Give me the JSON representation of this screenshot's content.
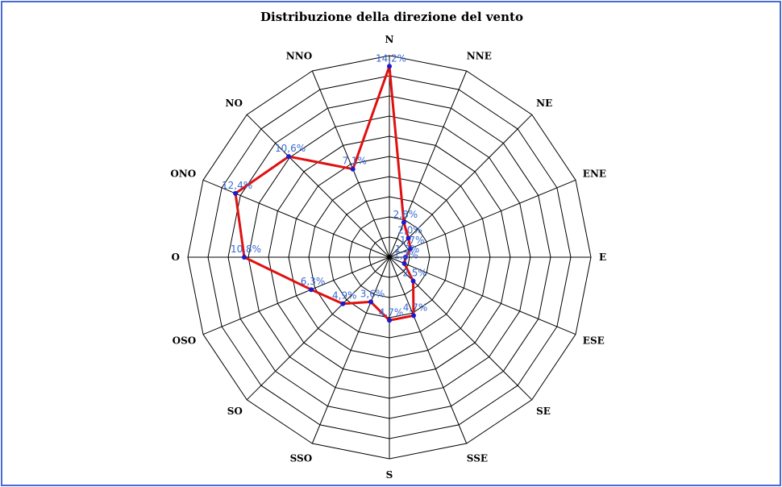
{
  "chart_data": {
    "type": "radar",
    "title": "Distribuzione della direzione del vento",
    "categories": [
      "N",
      "NNE",
      "NE",
      "ENE",
      "E",
      "ESE",
      "SE",
      "SSE",
      "S",
      "SSO",
      "SO",
      "OSO",
      "O",
      "ONO",
      "NO",
      "NNO"
    ],
    "series": [
      {
        "values": [
          14.2,
          2.8,
          2.0,
          1.7,
          1.2,
          1.2,
          2.5,
          4.7,
          4.7,
          3.6,
          4.9,
          6.3,
          10.8,
          12.4,
          10.6,
          7.1
        ],
        "labels": [
          "14,2%",
          "2,8%",
          "2,0%",
          "1,7%",
          "1,2%",
          "1,2%",
          "2,5%",
          "4,7%",
          "4,7%",
          "3,6%",
          "4,9%",
          "6,3%",
          "10,8%",
          "12,4%",
          "10,6%",
          "7,1%"
        ]
      }
    ],
    "rlim": [
      0,
      15
    ],
    "rings": 10,
    "grid": true,
    "colors": {
      "line": "#e01010",
      "marker": "#1a1ad0",
      "label": "#3a6ad0",
      "grid": "#000000",
      "border": "#4a6ad8"
    }
  }
}
